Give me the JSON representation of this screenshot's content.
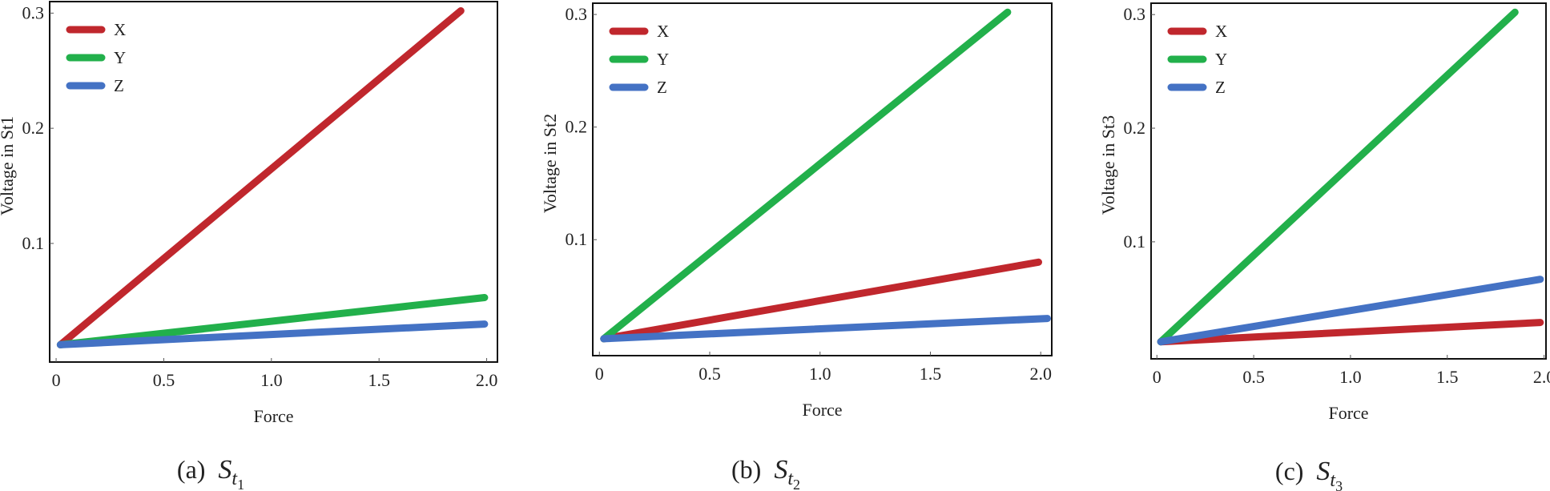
{
  "chart_data": [
    {
      "type": "line",
      "caption_prefix": "(a)",
      "caption_symbol": "S",
      "caption_sub": "t",
      "caption_subsub": "1",
      "xlabel": "Force",
      "ylabel": "Voltage in St1",
      "xlim": [
        -0.03,
        2.05
      ],
      "ylim": [
        -0.003,
        0.31
      ],
      "xticks": [
        "0",
        "0.5",
        "1.0",
        "1.5",
        "2.0"
      ],
      "xtick_values": [
        0,
        0.5,
        1.0,
        1.5,
        2.0
      ],
      "yticks": [
        "0.1",
        "0.2",
        "0.3"
      ],
      "ytick_values": [
        0.1,
        0.2,
        0.3
      ],
      "legend_position": "top-left",
      "series": [
        {
          "name": "X",
          "color": "#c0272d",
          "x": [
            0.02,
            1.88
          ],
          "y": [
            0.012,
            0.302
          ]
        },
        {
          "name": "Y",
          "color": "#22b04b",
          "x": [
            0.02,
            1.99
          ],
          "y": [
            0.012,
            0.053
          ]
        },
        {
          "name": "Z",
          "color": "#4472c4",
          "x": [
            0.02,
            1.99
          ],
          "y": [
            0.012,
            0.03
          ]
        }
      ]
    },
    {
      "type": "line",
      "caption_prefix": "(b)",
      "caption_symbol": "S",
      "caption_sub": "t",
      "caption_subsub": "2",
      "xlabel": "Force",
      "ylabel": "Voltage in St2",
      "xlim": [
        -0.03,
        2.05
      ],
      "ylim": [
        -0.003,
        0.31
      ],
      "xticks": [
        "0",
        "0.5",
        "1.0",
        "1.5",
        "2.0"
      ],
      "xtick_values": [
        0,
        0.5,
        1.0,
        1.5,
        2.0
      ],
      "yticks": [
        "0.1",
        "0.2",
        "0.3"
      ],
      "ytick_values": [
        0.1,
        0.2,
        0.3
      ],
      "legend_position": "top-left",
      "series": [
        {
          "name": "X",
          "color": "#c0272d",
          "x": [
            0.02,
            1.99
          ],
          "y": [
            0.012,
            0.08
          ]
        },
        {
          "name": "Y",
          "color": "#22b04b",
          "x": [
            0.02,
            1.85
          ],
          "y": [
            0.012,
            0.302
          ]
        },
        {
          "name": "Z",
          "color": "#4472c4",
          "x": [
            0.02,
            2.03
          ],
          "y": [
            0.012,
            0.03
          ]
        }
      ]
    },
    {
      "type": "line",
      "caption_prefix": "(c)",
      "caption_symbol": "S",
      "caption_sub": "t",
      "caption_subsub": "3",
      "xlabel": "Force",
      "ylabel": "Voltage in St3",
      "xlim": [
        -0.03,
        2.01
      ],
      "ylim": [
        -0.003,
        0.31
      ],
      "xticks": [
        "0",
        "0.5",
        "1.0",
        "1.5",
        "2.0"
      ],
      "xtick_values": [
        0,
        0.5,
        1.0,
        1.5,
        2.0
      ],
      "yticks": [
        "0.1",
        "0.2",
        "0.3"
      ],
      "ytick_values": [
        0.1,
        0.2,
        0.3
      ],
      "legend_position": "top-left",
      "series": [
        {
          "name": "X",
          "color": "#c0272d",
          "x": [
            0.02,
            1.98
          ],
          "y": [
            0.012,
            0.029
          ]
        },
        {
          "name": "Y",
          "color": "#22b04b",
          "x": [
            0.02,
            1.85
          ],
          "y": [
            0.012,
            0.302
          ]
        },
        {
          "name": "Z",
          "color": "#4472c4",
          "x": [
            0.02,
            1.98
          ],
          "y": [
            0.012,
            0.067
          ]
        }
      ]
    }
  ]
}
